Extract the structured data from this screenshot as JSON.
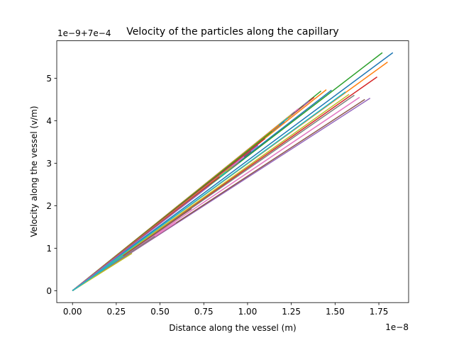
{
  "chart_data": {
    "type": "line",
    "title": "Velocity of the particles along the capillary",
    "xlabel": "Distance along the vessel (m)",
    "ylabel": "Velocity along the vessel (v/m)",
    "x_offset_text": "1e−8",
    "y_offset_text": "1e−9+7e−4",
    "xlim": [
      -0.09,
      1.92
    ],
    "ylim": [
      -0.28,
      5.88
    ],
    "x_ticks": [
      {
        "value": 0.0,
        "label": "0.00"
      },
      {
        "value": 0.25,
        "label": "0.25"
      },
      {
        "value": 0.5,
        "label": "0.50"
      },
      {
        "value": 0.75,
        "label": "0.75"
      },
      {
        "value": 1.0,
        "label": "1.00"
      },
      {
        "value": 1.25,
        "label": "1.25"
      },
      {
        "value": 1.5,
        "label": "1.50"
      },
      {
        "value": 1.75,
        "label": "1.75"
      }
    ],
    "y_ticks": [
      {
        "value": 0,
        "label": "0"
      },
      {
        "value": 1,
        "label": "1"
      },
      {
        "value": 2,
        "label": "2"
      },
      {
        "value": 3,
        "label": "3"
      },
      {
        "value": 4,
        "label": "4"
      },
      {
        "value": 5,
        "label": "5"
      }
    ],
    "grid": false,
    "legend": "none",
    "series": [
      {
        "color": "#1f77b4",
        "x": [
          0,
          1.83
        ],
        "y": [
          0,
          5.6
        ]
      },
      {
        "color": "#ff7f0e",
        "x": [
          0,
          1.8
        ],
        "y": [
          0,
          5.38
        ]
      },
      {
        "color": "#2ca02c",
        "x": [
          0,
          1.77
        ],
        "y": [
          0,
          5.6
        ]
      },
      {
        "color": "#d62728",
        "x": [
          0,
          1.74
        ],
        "y": [
          0,
          5.03
        ]
      },
      {
        "color": "#9467bd",
        "x": [
          0,
          1.7
        ],
        "y": [
          0,
          4.53
        ]
      },
      {
        "color": "#8c564b",
        "x": [
          0,
          1.67
        ],
        "y": [
          0,
          4.5
        ]
      },
      {
        "color": "#e377c2",
        "x": [
          0,
          1.64
        ],
        "y": [
          0,
          4.55
        ]
      },
      {
        "color": "#7f7f7f",
        "x": [
          0,
          1.61
        ],
        "y": [
          0,
          4.6
        ]
      },
      {
        "color": "#bcbd22",
        "x": [
          0,
          1.58
        ],
        "y": [
          0,
          4.62
        ]
      },
      {
        "color": "#17becf",
        "x": [
          0,
          1.56
        ],
        "y": [
          0,
          4.68
        ]
      },
      {
        "color": "#1f77b4",
        "x": [
          0,
          1.48
        ],
        "y": [
          0,
          4.72
        ]
      },
      {
        "color": "#ff7f0e",
        "x": [
          0,
          1.45
        ],
        "y": [
          0,
          4.73
        ]
      },
      {
        "color": "#2ca02c",
        "x": [
          0,
          1.42
        ],
        "y": [
          0,
          4.7
        ]
      },
      {
        "color": "#d62728",
        "x": [
          0,
          1.38
        ],
        "y": [
          0,
          4.55
        ]
      },
      {
        "color": "#9467bd",
        "x": [
          0,
          1.35
        ],
        "y": [
          0,
          4.46
        ]
      },
      {
        "color": "#8c564b",
        "x": [
          0,
          1.32
        ],
        "y": [
          0,
          4.36
        ]
      },
      {
        "color": "#e377c2",
        "x": [
          0,
          1.29
        ],
        "y": [
          0,
          4.28
        ]
      },
      {
        "color": "#7f7f7f",
        "x": [
          0,
          1.27
        ],
        "y": [
          0,
          4.21
        ]
      },
      {
        "color": "#bcbd22",
        "x": [
          0,
          1.25
        ],
        "y": [
          0,
          4.14
        ]
      },
      {
        "color": "#17becf",
        "x": [
          0,
          1.23
        ],
        "y": [
          0,
          4.06
        ]
      },
      {
        "color": "#1f77b4",
        "x": [
          0,
          1.21
        ],
        "y": [
          0,
          3.98
        ]
      },
      {
        "color": "#ff7f0e",
        "x": [
          0,
          1.18
        ],
        "y": [
          0,
          3.9
        ]
      },
      {
        "color": "#2ca02c",
        "x": [
          0,
          1.14
        ],
        "y": [
          0,
          3.75
        ]
      },
      {
        "color": "#d62728",
        "x": [
          0,
          1.1
        ],
        "y": [
          0,
          3.58
        ]
      },
      {
        "color": "#9467bd",
        "x": [
          0,
          1.06
        ],
        "y": [
          0,
          3.42
        ]
      },
      {
        "color": "#8c564b",
        "x": [
          0,
          1.02
        ],
        "y": [
          0,
          3.28
        ]
      },
      {
        "color": "#e377c2",
        "x": [
          0,
          0.98
        ],
        "y": [
          0,
          3.15
        ]
      },
      {
        "color": "#7f7f7f",
        "x": [
          0,
          0.95
        ],
        "y": [
          0,
          3.02
        ]
      },
      {
        "color": "#bcbd22",
        "x": [
          0,
          0.91
        ],
        "y": [
          0,
          2.92
        ]
      },
      {
        "color": "#17becf",
        "x": [
          0,
          0.88
        ],
        "y": [
          0,
          2.8
        ]
      },
      {
        "color": "#d62728",
        "x": [
          0,
          0.84
        ],
        "y": [
          0,
          2.68
        ]
      },
      {
        "color": "#9467bd",
        "x": [
          0,
          0.78
        ],
        "y": [
          0,
          2.46
        ]
      },
      {
        "color": "#8c564b",
        "x": [
          0,
          0.68
        ],
        "y": [
          0,
          1.93
        ]
      },
      {
        "color": "#e377c2",
        "x": [
          0,
          0.59
        ],
        "y": [
          0,
          1.6
        ]
      },
      {
        "color": "#7f7f7f",
        "x": [
          0,
          0.47
        ],
        "y": [
          0,
          1.28
        ]
      },
      {
        "color": "#bcbd22",
        "x": [
          0,
          0.34
        ],
        "y": [
          0,
          0.88
        ]
      },
      {
        "color": "#17becf",
        "x": [
          0,
          0.29
        ],
        "y": [
          0,
          0.82
        ]
      }
    ]
  }
}
